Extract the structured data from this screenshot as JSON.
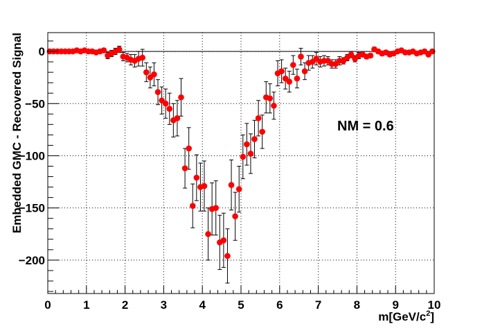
{
  "chart_data": {
    "type": "scatter",
    "title": "",
    "xlabel": "m[GeV/c",
    "xlabel_sup": "2",
    "xlabel_close": "]",
    "ylabel": "Embedded GMC - Recovered Signal",
    "annotation": "NM = 0.6",
    "xlim": [
      0,
      10
    ],
    "ylim": [
      -232,
      18
    ],
    "xticks": [
      0,
      1,
      2,
      3,
      4,
      5,
      6,
      7,
      8,
      9,
      10
    ],
    "yticks": [
      0,
      -50,
      -100,
      -150,
      -200
    ],
    "ytick_labels": [
      "0",
      "−50",
      "−100",
      "−150",
      "−200"
    ],
    "grid": true,
    "reference_line_y": 0,
    "marker_color": "#ff0000",
    "errorbar_color": "#000000",
    "series": [
      {
        "x": [
          0.05,
          0.15,
          0.25,
          0.35,
          0.45,
          0.55,
          0.65,
          0.75,
          0.85,
          0.95,
          1.05,
          1.15,
          1.25,
          1.35,
          1.45,
          1.55,
          1.65,
          1.75,
          1.85,
          1.95,
          2.05,
          2.15,
          2.25,
          2.35,
          2.45,
          2.55,
          2.65,
          2.75,
          2.85,
          2.95,
          3.05,
          3.15,
          3.25,
          3.35,
          3.45,
          3.55,
          3.65,
          3.75,
          3.85,
          3.95,
          4.05,
          4.15,
          4.25,
          4.35,
          4.45,
          4.55,
          4.65,
          4.75,
          4.85,
          4.95,
          5.05,
          5.15,
          5.25,
          5.35,
          5.45,
          5.55,
          5.65,
          5.75,
          5.85,
          5.95,
          6.05,
          6.15,
          6.25,
          6.35,
          6.45,
          6.55,
          6.65,
          6.75,
          6.85,
          6.95,
          7.05,
          7.15,
          7.25,
          7.35,
          7.45,
          7.55,
          7.65,
          7.75,
          7.85,
          7.95,
          8.05,
          8.15,
          8.25,
          8.35,
          8.45,
          8.55,
          8.65,
          8.75,
          8.85,
          8.95,
          9.05,
          9.15,
          9.25,
          9.35,
          9.45,
          9.55,
          9.65,
          9.75,
          9.85,
          9.95
        ],
        "y": [
          0,
          0,
          0,
          0,
          0,
          0,
          0,
          1,
          0,
          1,
          0,
          0,
          -1,
          0,
          1,
          -4,
          -2,
          0,
          2,
          -5,
          -6,
          -8,
          -9,
          -7,
          -6,
          -20,
          -25,
          -22,
          -39,
          -47,
          -50,
          -55,
          -66,
          -64,
          -44,
          -112,
          -93,
          -148,
          -121,
          -130,
          -129,
          -175,
          -151,
          -150,
          -183,
          -181,
          -196,
          -128,
          -158,
          -132,
          -101,
          -89,
          -98,
          -84,
          -64,
          -77,
          -44,
          -45,
          -52,
          -21,
          -19,
          -26,
          -29,
          -13,
          -26,
          -5,
          -19,
          -11,
          -10,
          -7,
          -10,
          -9,
          -9,
          -12,
          -12,
          -9,
          -9,
          -6,
          -3,
          -7,
          -4,
          -3,
          -5,
          -4,
          2,
          0,
          -2,
          -1,
          -3,
          -2,
          0,
          1,
          -1,
          -1,
          0,
          -2,
          -1,
          0,
          -3,
          0
        ],
        "yerr": [
          1,
          1,
          1,
          1,
          1,
          1,
          1,
          1,
          1,
          1,
          1,
          1,
          1,
          2,
          2,
          3,
          3,
          3,
          3,
          4,
          4,
          5,
          6,
          7,
          8,
          9,
          10,
          11,
          12,
          13,
          14,
          15,
          16,
          17,
          18,
          19,
          20,
          21,
          22,
          23,
          24,
          25,
          25,
          26,
          26,
          26,
          26,
          24,
          23,
          22,
          21,
          20,
          19,
          18,
          17,
          16,
          15,
          14,
          13,
          12,
          11,
          10,
          10,
          9,
          9,
          8,
          8,
          7,
          6,
          6,
          5,
          5,
          4,
          4,
          4,
          4,
          3,
          3,
          3,
          3,
          3,
          2,
          2,
          2,
          2,
          2,
          2,
          2,
          2,
          2,
          1,
          1,
          1,
          1,
          1,
          1,
          1,
          1,
          1,
          1
        ]
      }
    ]
  }
}
